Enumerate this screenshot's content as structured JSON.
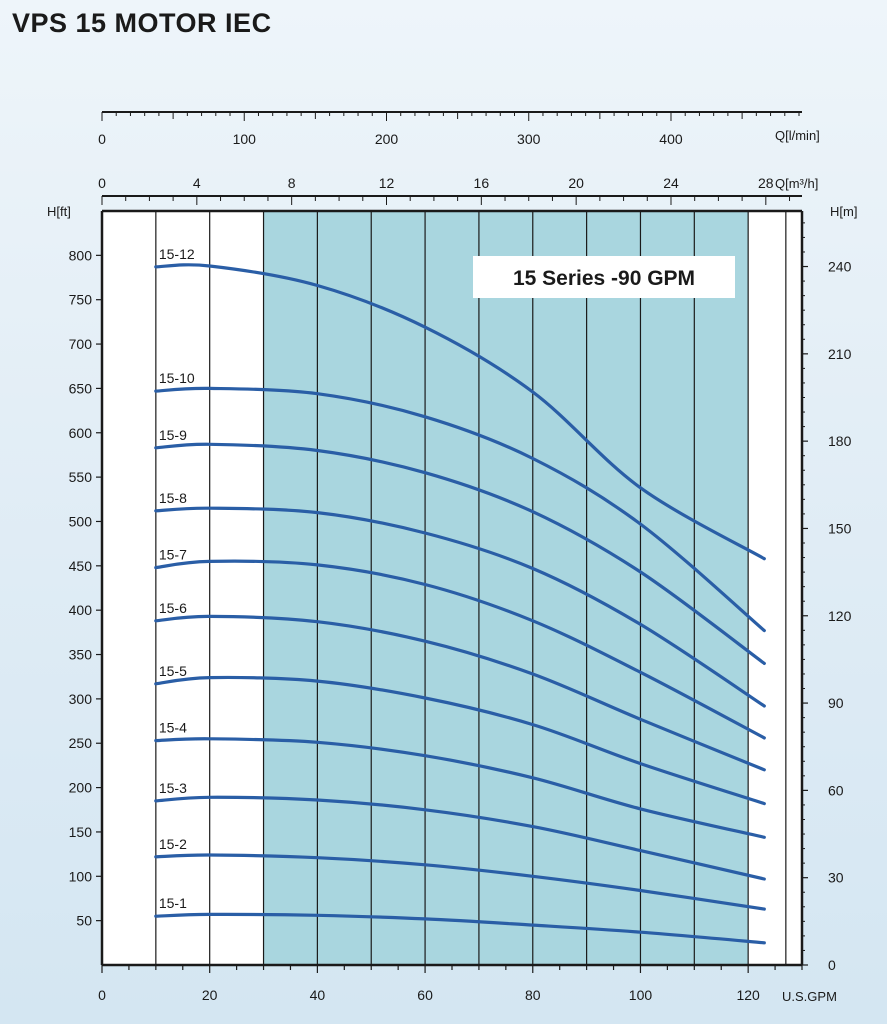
{
  "title": "VPS 15 MOTOR IEC",
  "chart_data": {
    "type": "line",
    "annotation": "15 Series -90 GPM",
    "x_axis_primary": {
      "label": "U.S.GPM",
      "range": [
        0,
        130
      ],
      "ticks": [
        0,
        20,
        40,
        60,
        80,
        100,
        120
      ]
    },
    "x_axis_lmin": {
      "label": "Q[l/min]",
      "ticks": [
        0,
        100,
        200,
        300,
        400
      ]
    },
    "x_axis_m3h": {
      "label": "Q[m³/h]",
      "ticks": [
        0,
        4,
        8,
        12,
        16,
        20,
        24,
        28
      ]
    },
    "y_axis_left": {
      "label": "H[ft]",
      "range": [
        0,
        850
      ],
      "ticks": [
        50,
        100,
        150,
        200,
        250,
        300,
        350,
        400,
        450,
        500,
        550,
        600,
        650,
        700,
        750,
        800
      ]
    },
    "y_axis_right": {
      "label": "H[m]",
      "ticks": [
        0,
        30,
        60,
        90,
        120,
        150,
        180,
        210,
        240
      ]
    },
    "recommended_range_gpm": [
      30,
      120
    ],
    "grid": true,
    "series": [
      {
        "name": "15-1",
        "x": [
          10,
          20,
          40,
          60,
          80,
          100,
          123
        ],
        "y": [
          55,
          57,
          56,
          52,
          45,
          37,
          25
        ]
      },
      {
        "name": "15-2",
        "x": [
          10,
          20,
          40,
          60,
          80,
          100,
          123
        ],
        "y": [
          122,
          124,
          121,
          113,
          100,
          84,
          63
        ]
      },
      {
        "name": "15-3",
        "x": [
          10,
          20,
          40,
          60,
          80,
          100,
          123
        ],
        "y": [
          185,
          189,
          186,
          175,
          156,
          129,
          97
        ]
      },
      {
        "name": "15-4",
        "x": [
          10,
          20,
          40,
          60,
          80,
          100,
          123
        ],
        "y": [
          253,
          255,
          251,
          236,
          211,
          176,
          144
        ]
      },
      {
        "name": "15-5",
        "x": [
          10,
          20,
          40,
          60,
          80,
          100,
          123
        ],
        "y": [
          317,
          324,
          320,
          301,
          271,
          227,
          182
        ]
      },
      {
        "name": "15-6",
        "x": [
          10,
          20,
          40,
          60,
          80,
          100,
          123
        ],
        "y": [
          388,
          393,
          387,
          365,
          328,
          277,
          220
        ]
      },
      {
        "name": "15-7",
        "x": [
          10,
          20,
          40,
          60,
          80,
          100,
          123
        ],
        "y": [
          448,
          455,
          451,
          429,
          388,
          330,
          256
        ]
      },
      {
        "name": "15-8",
        "x": [
          10,
          20,
          40,
          60,
          80,
          100,
          123
        ],
        "y": [
          512,
          515,
          510,
          487,
          447,
          384,
          292
        ]
      },
      {
        "name": "15-9",
        "x": [
          10,
          20,
          40,
          60,
          80,
          100,
          123
        ],
        "y": [
          583,
          587,
          580,
          555,
          511,
          443,
          340
        ]
      },
      {
        "name": "15-10",
        "x": [
          10,
          20,
          40,
          60,
          80,
          100,
          123
        ],
        "y": [
          647,
          650,
          644,
          618,
          571,
          497,
          377
        ]
      },
      {
        "name": "15-12",
        "x": [
          10,
          20,
          40,
          60,
          80,
          100,
          123
        ],
        "y": [
          787,
          788,
          766,
          719,
          646,
          538,
          458
        ]
      }
    ],
    "colors": {
      "curve": "#2a5ea6",
      "band": "#a9d6df",
      "grid": "#1a1a1a"
    }
  }
}
